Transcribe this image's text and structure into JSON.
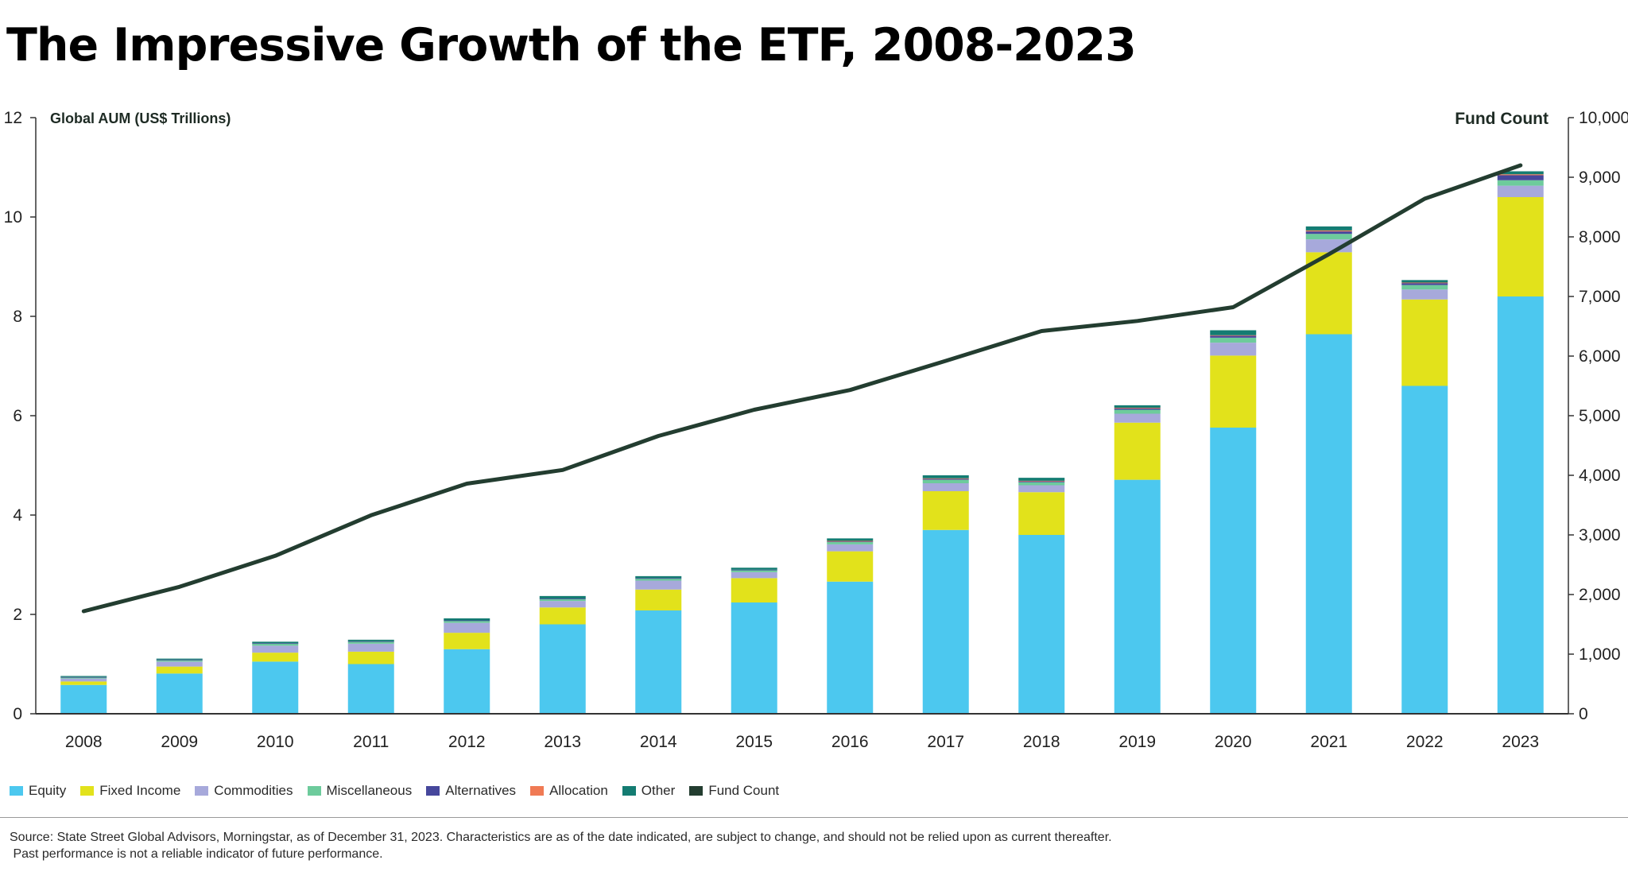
{
  "title": "The Impressive Growth of the ETF, 2008-2023",
  "chart_data": {
    "type": "bar",
    "stacked": true,
    "title": "The Impressive Growth of the ETF, 2008-2023",
    "ylabel": "Global AUM (US$ Trillions)",
    "y2label": "Fund Count",
    "ylim": [
      0,
      12
    ],
    "y2lim": [
      0,
      10000
    ],
    "yticks": [
      0,
      2,
      4,
      6,
      8,
      10,
      12
    ],
    "y2ticks": [
      "0",
      "1,000",
      "2,000",
      "3,000",
      "4,000",
      "5,000",
      "6,000",
      "7,000",
      "8,000",
      "9,000",
      "10,000"
    ],
    "y2tick_values": [
      0,
      1000,
      2000,
      3000,
      4000,
      5000,
      6000,
      7000,
      8000,
      9000,
      10000
    ],
    "categories": [
      "2008",
      "2009",
      "2010",
      "2011",
      "2012",
      "2013",
      "2014",
      "2015",
      "2016",
      "2017",
      "2018",
      "2019",
      "2020",
      "2021",
      "2022",
      "2023"
    ],
    "grid": false,
    "legend_position": "bottom-left",
    "series": [
      {
        "name": "Equity",
        "color": "#4cc8ef",
        "values": [
          0.58,
          0.81,
          1.05,
          1.0,
          1.3,
          1.8,
          2.08,
          2.24,
          2.66,
          3.7,
          3.6,
          4.71,
          5.76,
          7.64,
          6.6,
          8.4
        ]
      },
      {
        "name": "Fixed Income",
        "color": "#e2e21b",
        "values": [
          0.07,
          0.14,
          0.18,
          0.25,
          0.33,
          0.34,
          0.42,
          0.49,
          0.61,
          0.78,
          0.86,
          1.15,
          1.45,
          1.65,
          1.74,
          2.0
        ]
      },
      {
        "name": "Commodities",
        "color": "#a7a9db",
        "values": [
          0.06,
          0.1,
          0.14,
          0.16,
          0.2,
          0.13,
          0.18,
          0.12,
          0.14,
          0.16,
          0.14,
          0.18,
          0.26,
          0.26,
          0.2,
          0.23
        ]
      },
      {
        "name": "Miscellaneous",
        "color": "#6dcb9c",
        "values": [
          0.02,
          0.03,
          0.04,
          0.04,
          0.04,
          0.04,
          0.04,
          0.04,
          0.05,
          0.07,
          0.06,
          0.08,
          0.1,
          0.11,
          0.09,
          0.11
        ]
      },
      {
        "name": "Alternatives",
        "color": "#46479c",
        "values": [
          0.01,
          0.01,
          0.01,
          0.01,
          0.01,
          0.01,
          0.01,
          0.01,
          0.01,
          0.02,
          0.02,
          0.03,
          0.04,
          0.05,
          0.04,
          0.1
        ]
      },
      {
        "name": "Allocation",
        "color": "#f07a54",
        "values": [
          0.0,
          0.0,
          0.0,
          0.0,
          0.0,
          0.0,
          0.0,
          0.0,
          0.01,
          0.01,
          0.01,
          0.01,
          0.01,
          0.02,
          0.01,
          0.02
        ]
      },
      {
        "name": "Other",
        "color": "#147c72",
        "values": [
          0.02,
          0.02,
          0.03,
          0.03,
          0.04,
          0.05,
          0.04,
          0.04,
          0.05,
          0.06,
          0.06,
          0.05,
          0.1,
          0.08,
          0.05,
          0.06
        ]
      }
    ],
    "line_series": {
      "name": "Fund Count",
      "color": "#233d30",
      "axis": "right",
      "values": [
        1720,
        2130,
        2650,
        3330,
        3860,
        4090,
        4660,
        5100,
        5430,
        5920,
        6420,
        6590,
        6820,
        7710,
        8640,
        9200
      ]
    }
  },
  "source": {
    "line1": "Source: State Street Global Advisors, Morningstar, as of December 31, 2023. Characteristics are as of the date indicated, are subject to change, and should not be relied upon as current thereafter.",
    "line2": " Past performance is not a reliable indicator of future performance."
  }
}
